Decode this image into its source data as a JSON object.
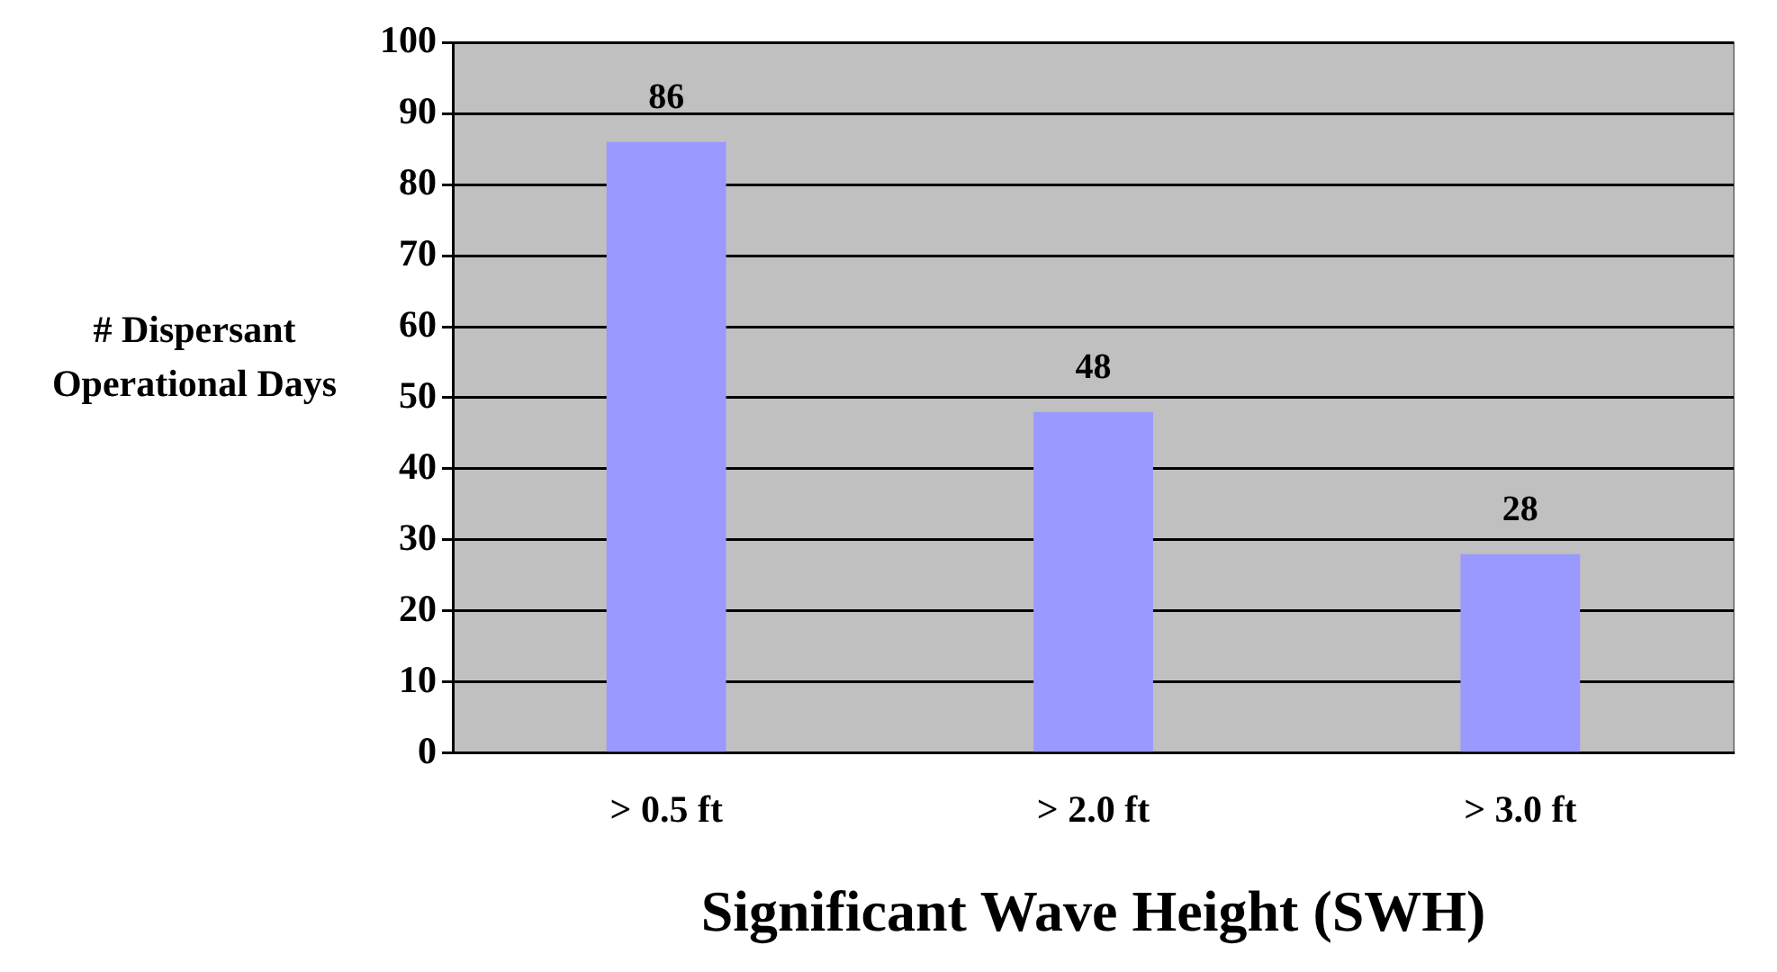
{
  "chart_data": {
    "type": "bar",
    "xlabel": "Significant Wave Height (SWH)",
    "ylabel": "# Dispersant Operational Days",
    "categories": [
      "> 0.5 ft",
      "> 2.0 ft",
      "> 3.0 ft"
    ],
    "values": [
      86,
      48,
      28
    ],
    "color": "#9999ff",
    "ylim": [
      0,
      100
    ],
    "yticks": [
      0,
      10,
      20,
      30,
      40,
      50,
      60,
      70,
      80,
      90,
      100
    ],
    "grid": "y",
    "data_labels": true,
    "legend": false
  }
}
